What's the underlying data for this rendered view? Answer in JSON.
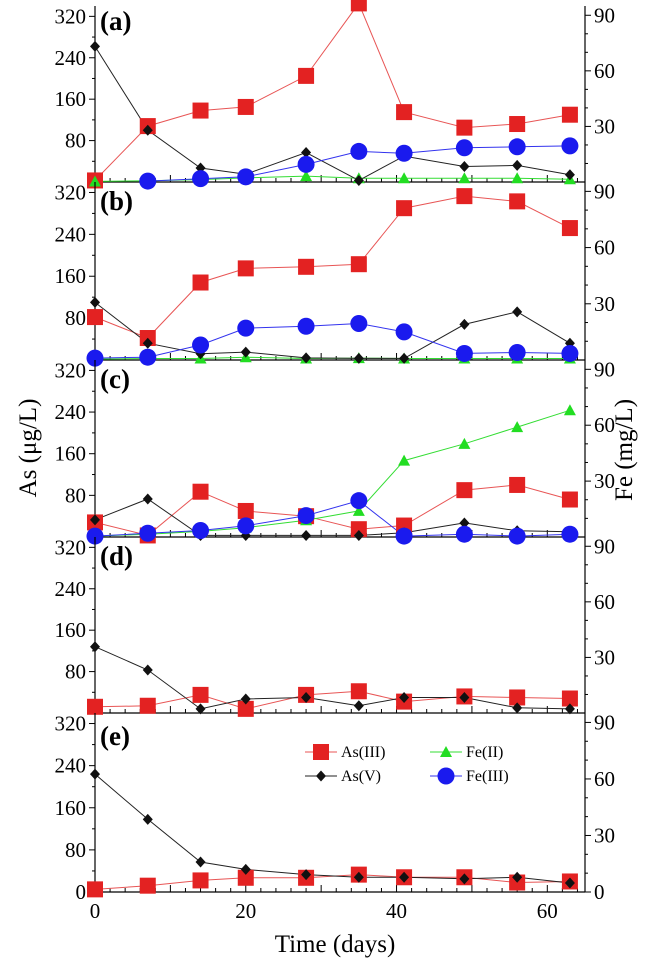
{
  "chart_data": {
    "type": "scatter",
    "x_axis": {
      "label": "Time (days)",
      "range": [
        0,
        65
      ],
      "ticks": [
        0,
        20,
        40,
        60
      ],
      "tick_labels": [
        "0",
        "20",
        "40",
        "60"
      ]
    },
    "left_axis": {
      "label": "As (μg/L)",
      "range": [
        0,
        340
      ],
      "ticks": [
        80,
        160,
        240,
        320
      ],
      "tick_labels": [
        "80",
        "160",
        "240",
        "320"
      ],
      "bottom_panel_ticks": [
        0,
        80,
        160,
        240,
        320
      ],
      "bottom_panel_tick_labels": [
        "0",
        "80",
        "160",
        "240",
        "320"
      ]
    },
    "right_axis": {
      "label": "Fe (mg/L)",
      "range": [
        0,
        95
      ],
      "ticks": [
        30,
        60,
        90
      ],
      "tick_labels": [
        "30",
        "60",
        "90"
      ],
      "bottom_panel_ticks": [
        0,
        30,
        60,
        90
      ],
      "bottom_panel_tick_labels": [
        "0",
        "30",
        "60",
        "90"
      ]
    },
    "legend": {
      "placement": "inside panel (e), upper right",
      "entries": [
        {
          "series": "As(III)",
          "label": "As(III)",
          "color": "#e32222",
          "marker": "square"
        },
        {
          "series": "Fe(II)",
          "label": "Fe(II)",
          "color": "#22dd22",
          "marker": "triangle"
        },
        {
          "series": "As(V)",
          "label": "As(V)",
          "color": "#111111",
          "marker": "diamond"
        },
        {
          "series": "Fe(III)",
          "label": "Fe(III)",
          "color": "#1a1aee",
          "marker": "circle"
        }
      ]
    },
    "panels": [
      {
        "label": "(a)",
        "series": [
          {
            "name": "As(III)",
            "axis": "left",
            "x": [
              0,
              7,
              14,
              20,
              28,
              35,
              41,
              49,
              56,
              63
            ],
            "y": [
              3,
              108,
              138,
              145,
              205,
              345,
              135,
              105,
              112,
              130
            ]
          },
          {
            "name": "As(V)",
            "axis": "left",
            "x": [
              0,
              7,
              14,
              20,
              28,
              35,
              41,
              49,
              56,
              63
            ],
            "y": [
              262,
              100,
              27,
              15,
              57,
              3,
              50,
              30,
              32,
              14
            ]
          },
          {
            "name": "Fe(II)",
            "axis": "right",
            "x": [
              0,
              7,
              14,
              20,
              28,
              35,
              41,
              49,
              56,
              63
            ],
            "y": [
              0.3,
              0.7,
              1.3,
              2.2,
              3.2,
              2.0,
              2.0,
              2.0,
              2.0,
              1.5
            ]
          },
          {
            "name": "Fe(III)",
            "axis": "right",
            "x": [
              7,
              14,
              20,
              28,
              35,
              41,
              49,
              56,
              63
            ],
            "y": [
              0.5,
              1.8,
              2.8,
              9.5,
              16.5,
              15.5,
              18.5,
              19,
              19.5
            ]
          }
        ]
      },
      {
        "label": "(b)",
        "series": [
          {
            "name": "As(III)",
            "axis": "left",
            "x": [
              0,
              7,
              14,
              20,
              28,
              35,
              41,
              49,
              56,
              63
            ],
            "y": [
              82,
              42,
              148,
              175,
              178,
              183,
              290,
              313,
              303,
              252
            ]
          },
          {
            "name": "As(V)",
            "axis": "left",
            "x": [
              0,
              7,
              14,
              20,
              28,
              35,
              41,
              49,
              56,
              63
            ],
            "y": [
              110,
              32,
              12,
              15,
              4,
              3,
              3,
              68,
              92,
              32
            ]
          },
          {
            "name": "Fe(II)",
            "axis": "right",
            "x": [
              0,
              7,
              14,
              20,
              28,
              35,
              41,
              49,
              56,
              63
            ],
            "y": [
              0.5,
              0.8,
              0.8,
              1.5,
              0.8,
              1.0,
              0.8,
              0.8,
              0.8,
              0.8
            ]
          },
          {
            "name": "Fe(III)",
            "axis": "right",
            "x": [
              0,
              7,
              14,
              20,
              28,
              35,
              41,
              49,
              56,
              63
            ],
            "y": [
              1.0,
              1.5,
              8.0,
              17.0,
              18.0,
              19.5,
              15.0,
              3.5,
              4.0,
              3.5
            ]
          }
        ]
      },
      {
        "label": "(c)",
        "series": [
          {
            "name": "As(III)",
            "axis": "left",
            "x": [
              0,
              7,
              14,
              20,
              28,
              35,
              41,
              49,
              56,
              63
            ],
            "y": [
              28,
              3,
              87,
              50,
              40,
              15,
              22,
              90,
              100,
              72
            ]
          },
          {
            "name": "As(V)",
            "axis": "left",
            "x": [
              0,
              7,
              14,
              20,
              28,
              35,
              41,
              49,
              56,
              63
            ],
            "y": [
              33,
              73,
              3,
              3,
              3,
              3,
              8,
              27,
              12,
              10
            ]
          },
          {
            "name": "Fe(II)",
            "axis": "right",
            "x": [
              0,
              7,
              14,
              20,
              28,
              35,
              41,
              49,
              56,
              63
            ],
            "y": [
              0.5,
              1.5,
              3.0,
              5.0,
              9.0,
              14.0,
              41,
              50,
              59,
              68
            ]
          },
          {
            "name": "Fe(III)",
            "axis": "right",
            "x": [
              0,
              7,
              14,
              20,
              28,
              35,
              41,
              49,
              56,
              63
            ],
            "y": [
              0.5,
              2.0,
              3.5,
              6.0,
              11.5,
              19.5,
              0.5,
              1.5,
              0.5,
              1.5
            ]
          }
        ]
      },
      {
        "label": "(d)",
        "series": [
          {
            "name": "As(III)",
            "axis": "left",
            "x": [
              0,
              7,
              14,
              20,
              28,
              35,
              41,
              49,
              56,
              63
            ],
            "y": [
              12,
              14,
              35,
              8,
              35,
              42,
              22,
              32,
              30,
              28
            ]
          },
          {
            "name": "As(V)",
            "axis": "left",
            "x": [
              0,
              7,
              14,
              20,
              28,
              35,
              41,
              49,
              56,
              63
            ],
            "y": [
              128,
              83,
              8,
              27,
              30,
              14,
              30,
              30,
              10,
              8
            ]
          }
        ]
      },
      {
        "label": "(e)",
        "series": [
          {
            "name": "As(III)",
            "axis": "left",
            "x": [
              0,
              7,
              14,
              20,
              28,
              35,
              41,
              49,
              56,
              63
            ],
            "y": [
              5,
              12,
              22,
              27,
              27,
              33,
              28,
              28,
              18,
              20
            ]
          },
          {
            "name": "As(V)",
            "axis": "left",
            "x": [
              0,
              7,
              14,
              20,
              28,
              35,
              41,
              49,
              56,
              63
            ],
            "y": [
              224,
              138,
              57,
              43,
              33,
              28,
              28,
              25,
              28,
              17
            ]
          }
        ]
      }
    ]
  }
}
